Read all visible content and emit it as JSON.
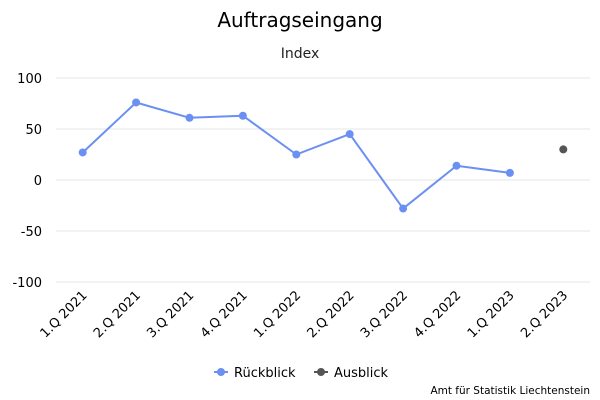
{
  "chart_data": {
    "type": "line",
    "title": "Auftragseingang",
    "subtitle": "Index",
    "categories": [
      "1.Q 2021",
      "2.Q 2021",
      "3.Q 2021",
      "4.Q 2021",
      "1.Q 2022",
      "2.Q 2022",
      "3.Q 2022",
      "4.Q 2022",
      "1.Q 2023",
      "2.Q 2023"
    ],
    "series": [
      {
        "name": "Rückblick",
        "color": "#6b8ff3",
        "values": [
          27,
          76,
          61,
          63,
          25,
          45,
          -28,
          14,
          7,
          null
        ]
      },
      {
        "name": "Ausblick",
        "color": "#555555",
        "values": [
          null,
          null,
          null,
          null,
          null,
          null,
          null,
          null,
          null,
          30
        ]
      }
    ],
    "ylim": [
      -100,
      100
    ],
    "yticks": [
      100,
      50,
      0,
      -50,
      -100
    ],
    "ytick_labels": [
      "100",
      "50",
      "0",
      "-50",
      "-100"
    ],
    "grid": true,
    "legend_position": "bottom-center",
    "credit": "Amt für Statistik Liechtenstein"
  }
}
